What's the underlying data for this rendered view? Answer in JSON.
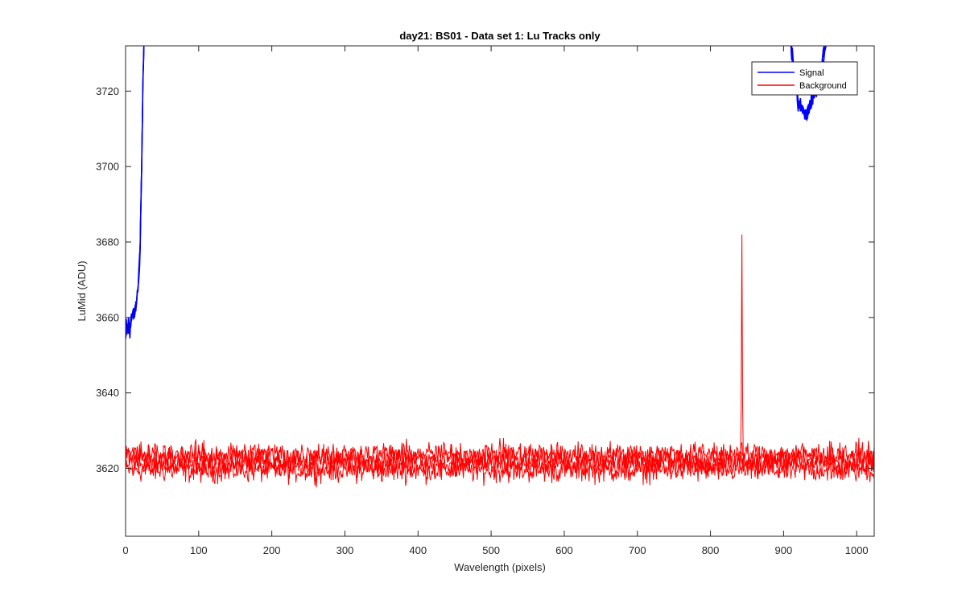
{
  "chart_data": {
    "type": "line",
    "title": "day21: BS01 - Data set 1: Lu Tracks only",
    "xlabel": "Wavelength (pixels)",
    "ylabel": "LuMid (ADU)",
    "xlim": [
      0,
      1024
    ],
    "ylim": [
      3602,
      3732
    ],
    "xticks": [
      0,
      100,
      200,
      300,
      400,
      500,
      600,
      700,
      800,
      900,
      1000
    ],
    "yticks": [
      3620,
      3640,
      3660,
      3680,
      3700,
      3720
    ],
    "grid": false,
    "legend_position": "top-right",
    "series": [
      {
        "name": "Signal",
        "color": "#0000ff",
        "segments": [
          {
            "x": [
              0,
              2,
              4,
              6,
              8,
              10,
              12,
              14,
              16,
              18,
              20,
              21,
              22,
              23,
              24,
              25
            ],
            "y": [
              3656,
              3657,
              3658,
              3657,
              3659,
              3660,
              3661,
              3663,
              3666,
              3670,
              3680,
              3690,
              3700,
              3712,
              3725,
              3732
            ]
          },
          {
            "x": [
              910,
              915,
              920,
              925,
              930,
              935,
              940,
              945,
              950,
              955,
              958
            ],
            "y": [
              3732,
              3724,
              3717,
              3715,
              3713,
              3716,
              3718,
              3721,
              3725,
              3729,
              3732
            ]
          }
        ]
      },
      {
        "name": "Background",
        "color": "#ff0000",
        "baseline": 3622,
        "noise_range": [
          3613,
          3629
        ],
        "spike": {
          "x": 843,
          "y": 3682
        }
      }
    ]
  }
}
